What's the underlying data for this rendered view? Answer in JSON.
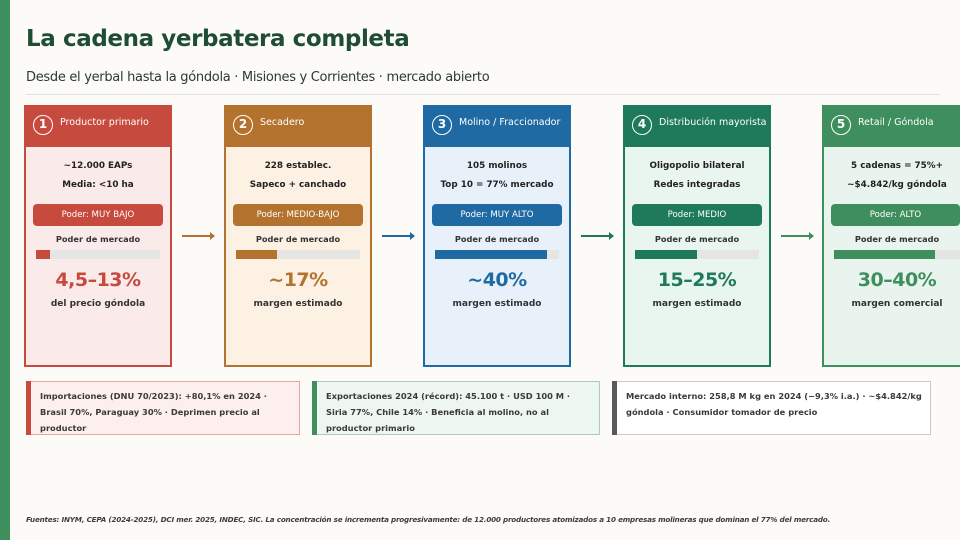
{
  "title": "La cadena yerbatera completa",
  "subtitle": "Desde el yerbal hasta la góndola · Misiones y Corrientes · mercado abierto",
  "colors": {
    "accent": "#3f8f5e",
    "stage1": "#c74a3f",
    "stage2": "#b3732f",
    "stage3": "#1f6aa3",
    "stage4": "#1e7a5a",
    "stage5": "#3f8f5e"
  },
  "stages": [
    {
      "number": "1",
      "name": "Productor primario",
      "stat1": "~12.000 EAPs",
      "stat2": "Media: <10 ha",
      "power": "Poder: MUY BAJO",
      "market_label": "Poder de mercado",
      "power_level": 0.11,
      "share": "4,5–13%",
      "share_sub": "del precio góndola"
    },
    {
      "number": "2",
      "name": "Secadero",
      "stat1": "228 establec.",
      "stat2": "Sapeco + canchado",
      "power": "Poder: MEDIO-BAJO",
      "market_label": "Poder de mercado",
      "power_level": 0.33,
      "share": "~17%",
      "share_sub": "margen estimado"
    },
    {
      "number": "3",
      "name": "Molino / Fraccionador",
      "stat1": "105 molinos",
      "stat2": "Top 10 = 77% mercado",
      "power": "Poder: MUY ALTO",
      "market_label": "Poder de mercado",
      "power_level": 0.9,
      "share": "~40%",
      "share_sub": "margen estimado"
    },
    {
      "number": "4",
      "name": "Distribución mayorista",
      "stat1": "Oligopolio bilateral",
      "stat2": "Redes integradas",
      "power": "Poder: MEDIO",
      "market_label": "Poder de mercado",
      "power_level": 0.5,
      "share": "15–25%",
      "share_sub": "margen estimado"
    },
    {
      "number": "5",
      "name": "Retail / Góndola",
      "stat1": "5 cadenas = 75%+",
      "stat2": "~$4.842/kg góndola",
      "power": "Poder: ALTO",
      "market_label": "Poder de mercado",
      "power_level": 0.8,
      "share": "30–40%",
      "share_sub": "margen comercial"
    }
  ],
  "notes": [
    {
      "text": "Importaciones (DNU 70/2023): +80,1% en 2024 · Brasil 70%, Paraguay 30% · Deprimen precio al productor"
    },
    {
      "text": "Exportaciones 2024 (récord): 45.100 t · USD 100 M · Siria 77%, Chile 14% · Beneficia al molino, no al productor primario"
    },
    {
      "text": "Mercado interno: 258,8 M kg en 2024 (−9,3% i.a.) · ~$4.842/kg góndola · Consumidor tomador de precio"
    }
  ],
  "footer": "Fuentes: INYM, CEPA (2024-2025), DCI mer. 2025, INDEC, SIC. La concentración se incrementa progresivamente: de 12.000 productores atomizados a 10 empresas molineras que dominan el 77% del mercado."
}
